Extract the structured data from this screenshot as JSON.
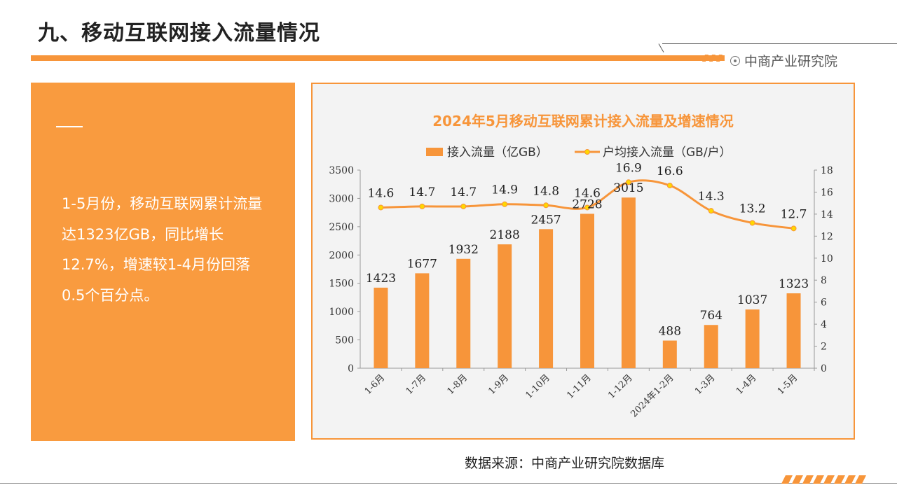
{
  "page": {
    "title": "九、移动互联网接入流量情况",
    "brand": "中商产业研究院",
    "summary": "1-5月份，移动互联网累计流量达1323亿GB，同比增长12.7%，增速较1-4月份回落0.5个百分点。",
    "source": "数据来源：中商产业研究院数据库",
    "accent_color": "#f7953a",
    "panel_color": "#f99b3f"
  },
  "chart_data": {
    "type": "bar",
    "title": "2024年5月移动互联网累计接入流量及增速情况",
    "categories": [
      "1-6月",
      "1-7月",
      "1-8月",
      "1-9月",
      "1-10月",
      "1-11月",
      "1-12月",
      "2024年1-2月",
      "1-3月",
      "1-4月",
      "1-5月"
    ],
    "series": [
      {
        "name": "接入流量（亿GB）",
        "type": "bar",
        "axis": "left",
        "color": "#f7953a",
        "values": [
          1423,
          1677,
          1932,
          2188,
          2457,
          2728,
          3015,
          488,
          764,
          1037,
          1323
        ],
        "labels": [
          "1423",
          "1677",
          "1932",
          "2188",
          "2457",
          "2728",
          "3015",
          "488",
          "764",
          "1037",
          "1323"
        ]
      },
      {
        "name": "户均接入流量（GB/户）",
        "type": "line",
        "axis": "right",
        "color": "#f7953a",
        "marker_color": "#ffd700",
        "values": [
          14.6,
          14.7,
          14.7,
          14.9,
          14.8,
          14.6,
          16.9,
          16.6,
          14.3,
          13.2,
          12.7
        ],
        "labels": [
          "14.6",
          "14.7",
          "14.7",
          "14.9",
          "14.8",
          "14.6",
          "16.9",
          "16.6",
          "14.3",
          "13.2",
          "12.7"
        ]
      }
    ],
    "y_left": {
      "range": [
        0,
        3500
      ],
      "ticks": [
        "0",
        "500",
        "1000",
        "1500",
        "2000",
        "2500",
        "3000",
        "3500"
      ]
    },
    "y_right": {
      "range": [
        0,
        18
      ],
      "ticks": [
        "0",
        "2",
        "4",
        "6",
        "8",
        "10",
        "12",
        "14",
        "16",
        "18"
      ]
    },
    "grid": false,
    "legend_position": "top"
  }
}
